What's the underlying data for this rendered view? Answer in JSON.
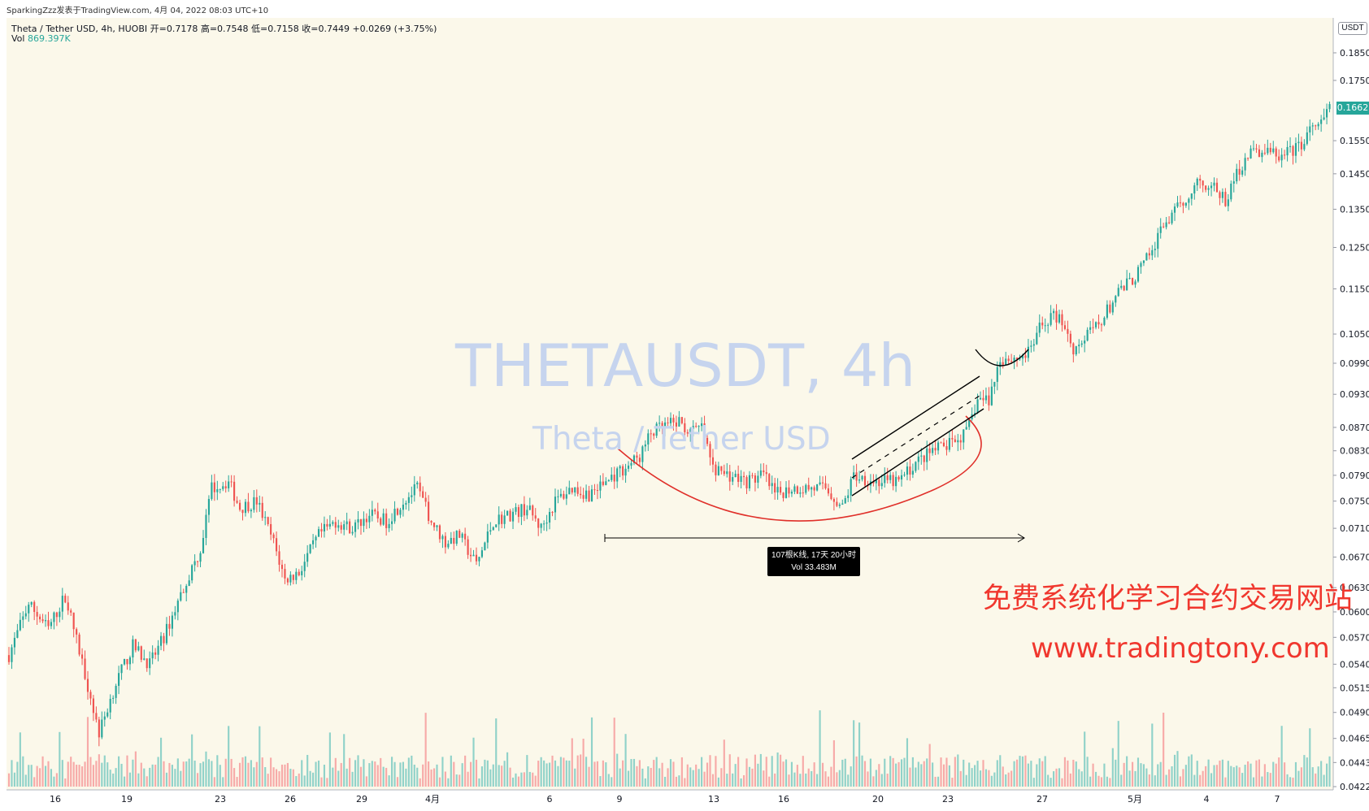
{
  "header": {
    "attribution": "SparkingZzz发表于TradingView.com,  4月 04, 2022 08:03 UTC+10",
    "symbol_line": "Theta / Tether USD, 4h, HUOBI  开=0.7178  高=0.7548  低=0.7158  收=0.7449  +0.0269 (+3.75%)",
    "vol_label": "Vol",
    "vol_value": "869.397K"
  },
  "currency_label": "USDT",
  "last_price": "0.1662",
  "watermark": {
    "title": "THETAUSDT, 4h",
    "subtitle": "Theta / Tether USD"
  },
  "measure_box": {
    "line1": "107根K线, 17天 20小时",
    "line2": "Vol 33.483M"
  },
  "promo": {
    "line1": "免费系统化学习合约交易网站",
    "line2": "www.tradingtony.com"
  },
  "colors": {
    "up": "#26a69a",
    "down": "#ef5350",
    "vol_up": "#90d2c9",
    "vol_down": "#f7aaa8",
    "curve": "#e0302a",
    "background": "#fbf8ea"
  },
  "chart_data": {
    "type": "candlestick",
    "y_scale": "log",
    "y_ticks": [
      "0.1850",
      "0.1750",
      "0.1662",
      "0.1550",
      "0.1450",
      "0.1350",
      "0.1250",
      "0.1150",
      "0.1050",
      "0.0990",
      "0.0930",
      "0.0870",
      "0.0830",
      "0.0790",
      "0.0750",
      "0.0710",
      "0.0670",
      "0.0630",
      "0.0600",
      "0.0570",
      "0.0540",
      "0.0515",
      "0.0490",
      "0.0465",
      "0.0443",
      "0.0422"
    ],
    "ylim": [
      0.0422,
      0.185
    ],
    "x_ticks": [
      "16",
      "19",
      "23",
      "26",
      "29",
      "4月",
      "6",
      "9",
      "13",
      "16",
      "20",
      "23",
      "27",
      "5月",
      "4",
      "7"
    ],
    "close_path": [
      [
        0,
        0.055
      ],
      [
        7,
        0.061
      ],
      [
        14,
        0.058
      ],
      [
        20,
        0.062
      ],
      [
        27,
        0.053
      ],
      [
        32,
        0.047
      ],
      [
        38,
        0.052
      ],
      [
        44,
        0.056
      ],
      [
        50,
        0.054
      ],
      [
        55,
        0.057
      ],
      [
        62,
        0.063
      ],
      [
        68,
        0.068
      ],
      [
        72,
        0.077
      ],
      [
        78,
        0.078
      ],
      [
        82,
        0.074
      ],
      [
        88,
        0.075
      ],
      [
        94,
        0.069
      ],
      [
        98,
        0.064
      ],
      [
        103,
        0.065
      ],
      [
        110,
        0.07
      ],
      [
        116,
        0.072
      ],
      [
        122,
        0.071
      ],
      [
        128,
        0.073
      ],
      [
        134,
        0.072
      ],
      [
        140,
        0.075
      ],
      [
        145,
        0.077
      ],
      [
        150,
        0.072
      ],
      [
        155,
        0.069
      ],
      [
        160,
        0.07
      ],
      [
        166,
        0.066
      ],
      [
        172,
        0.072
      ],
      [
        178,
        0.073
      ],
      [
        184,
        0.074
      ],
      [
        189,
        0.071
      ],
      [
        194,
        0.075
      ],
      [
        200,
        0.077
      ],
      [
        206,
        0.076
      ],
      [
        212,
        0.078
      ],
      [
        218,
        0.08
      ],
      [
        224,
        0.082
      ],
      [
        228,
        0.086
      ],
      [
        232,
        0.087
      ],
      [
        238,
        0.088
      ],
      [
        242,
        0.086
      ],
      [
        246,
        0.087
      ],
      [
        250,
        0.08
      ],
      [
        256,
        0.079
      ],
      [
        262,
        0.078
      ],
      [
        268,
        0.079
      ],
      [
        272,
        0.076
      ],
      [
        278,
        0.077
      ],
      [
        284,
        0.077
      ],
      [
        290,
        0.077
      ],
      [
        296,
        0.074
      ],
      [
        300,
        0.079
      ],
      [
        308,
        0.078
      ],
      [
        316,
        0.078
      ],
      [
        322,
        0.081
      ],
      [
        328,
        0.083
      ],
      [
        334,
        0.084
      ],
      [
        340,
        0.086
      ],
      [
        344,
        0.092
      ],
      [
        348,
        0.092
      ],
      [
        352,
        0.1
      ],
      [
        358,
        0.1
      ],
      [
        362,
        0.101
      ],
      [
        366,
        0.106
      ],
      [
        370,
        0.109
      ],
      [
        374,
        0.108
      ],
      [
        378,
        0.102
      ],
      [
        382,
        0.104
      ],
      [
        388,
        0.108
      ],
      [
        394,
        0.114
      ],
      [
        400,
        0.118
      ],
      [
        406,
        0.124
      ],
      [
        410,
        0.131
      ],
      [
        414,
        0.134
      ],
      [
        418,
        0.138
      ],
      [
        422,
        0.143
      ],
      [
        428,
        0.141
      ],
      [
        432,
        0.137
      ],
      [
        436,
        0.145
      ],
      [
        440,
        0.151
      ],
      [
        446,
        0.152
      ],
      [
        452,
        0.15
      ],
      [
        458,
        0.153
      ],
      [
        462,
        0.158
      ],
      [
        466,
        0.16
      ],
      [
        469,
        0.166
      ]
    ],
    "annotations": [
      "rounding-bottom arc",
      "ascending channel",
      "date range ruler",
      "small bowl after breakout"
    ]
  }
}
